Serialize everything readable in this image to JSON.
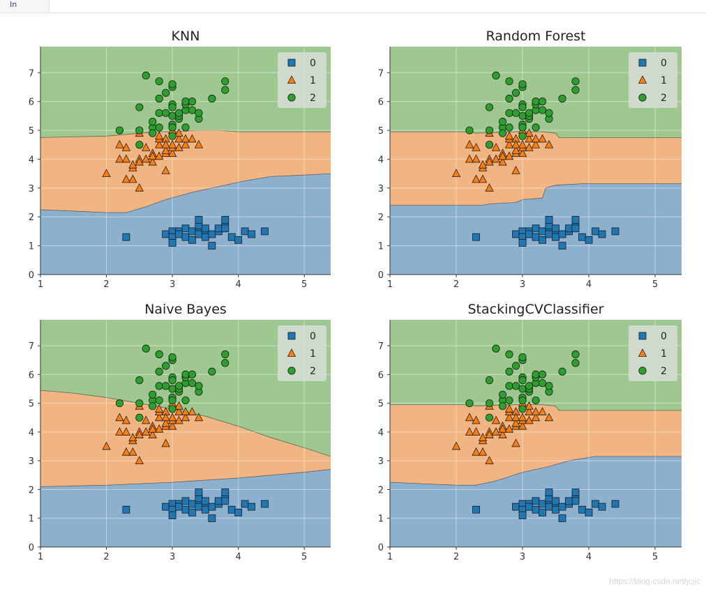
{
  "notebook": {
    "prompt_label": "In"
  },
  "watermark": "https://blog.csdn.net/jcjic",
  "colors": {
    "class0_region": "#8db0ce",
    "class1_region": "#f1b584",
    "class2_region": "#9fc891",
    "class0_marker": "#1f77b4",
    "class1_marker": "#ff7f0e",
    "class2_marker": "#2ca02c",
    "grid": "#ffffff",
    "legend_bg": "#d9dedb"
  },
  "chart_data": [
    {
      "type": "scatter",
      "title": "KNN",
      "xlim": [
        1,
        5.4
      ],
      "ylim": [
        0,
        7.9
      ],
      "xticks": [
        1,
        2,
        3,
        4,
        5
      ],
      "yticks": [
        0,
        1,
        2,
        3,
        4,
        5,
        6,
        7
      ],
      "legend": {
        "placement": "top-right",
        "entries": [
          "0",
          "1",
          "2"
        ]
      },
      "boundary_0_1": [
        [
          1,
          2.25
        ],
        [
          1.5,
          2.2
        ],
        [
          2,
          2.15
        ],
        [
          2.3,
          2.15
        ],
        [
          2.6,
          2.35
        ],
        [
          2.9,
          2.6
        ],
        [
          3.3,
          2.85
        ],
        [
          3.7,
          3.05
        ],
        [
          4.1,
          3.25
        ],
        [
          4.5,
          3.4
        ],
        [
          5.0,
          3.45
        ],
        [
          5.4,
          3.5
        ]
      ],
      "boundary_1_2": [
        [
          1,
          4.75
        ],
        [
          2.0,
          4.8
        ],
        [
          2.5,
          4.9
        ],
        [
          2.8,
          4.95
        ],
        [
          3.0,
          4.95
        ],
        [
          3.4,
          5.0
        ],
        [
          3.7,
          5.0
        ],
        [
          4.0,
          4.95
        ],
        [
          5.4,
          4.95
        ]
      ]
    },
    {
      "type": "scatter",
      "title": "Random Forest",
      "xlim": [
        1,
        5.4
      ],
      "ylim": [
        0,
        7.9
      ],
      "xticks": [
        1,
        2,
        3,
        4,
        5
      ],
      "yticks": [
        0,
        1,
        2,
        3,
        4,
        5,
        6,
        7
      ],
      "legend": {
        "placement": "top-right",
        "entries": [
          "0",
          "1",
          "2"
        ]
      },
      "boundary_0_1": [
        [
          1,
          2.4
        ],
        [
          2.4,
          2.4
        ],
        [
          2.5,
          2.45
        ],
        [
          2.9,
          2.5
        ],
        [
          3.0,
          2.6
        ],
        [
          3.3,
          2.65
        ],
        [
          3.35,
          3.0
        ],
        [
          3.5,
          3.1
        ],
        [
          3.9,
          3.15
        ],
        [
          5.4,
          3.15
        ]
      ],
      "boundary_1_2": [
        [
          1,
          4.95
        ],
        [
          2.2,
          4.95
        ],
        [
          2.3,
          4.9
        ],
        [
          2.9,
          4.95
        ],
        [
          3.3,
          4.95
        ],
        [
          3.5,
          4.9
        ],
        [
          3.55,
          4.75
        ],
        [
          5.4,
          4.75
        ]
      ]
    },
    {
      "type": "scatter",
      "title": "Naive Bayes",
      "xlim": [
        1,
        5.4
      ],
      "ylim": [
        0,
        7.9
      ],
      "xticks": [
        1,
        2,
        3,
        4,
        5
      ],
      "yticks": [
        0,
        1,
        2,
        3,
        4,
        5,
        6,
        7
      ],
      "legend": {
        "placement": "top-right",
        "entries": [
          "0",
          "1",
          "2"
        ]
      },
      "boundary_0_1": [
        [
          1,
          2.1
        ],
        [
          2,
          2.15
        ],
        [
          3,
          2.25
        ],
        [
          4,
          2.4
        ],
        [
          5,
          2.6
        ],
        [
          5.4,
          2.7
        ]
      ],
      "boundary_1_2": [
        [
          1,
          5.45
        ],
        [
          1.5,
          5.35
        ],
        [
          2,
          5.2
        ],
        [
          2.5,
          5.0
        ],
        [
          3,
          4.8
        ],
        [
          3.5,
          4.55
        ],
        [
          4,
          4.2
        ],
        [
          4.5,
          3.8
        ],
        [
          5,
          3.45
        ],
        [
          5.4,
          3.15
        ]
      ]
    },
    {
      "type": "scatter",
      "title": "StackingCVClassifier",
      "xlim": [
        1,
        5.4
      ],
      "ylim": [
        0,
        7.9
      ],
      "xticks": [
        1,
        2,
        3,
        4,
        5
      ],
      "yticks": [
        0,
        1,
        2,
        3,
        4,
        5,
        6,
        7
      ],
      "legend": {
        "placement": "top-right",
        "entries": [
          "0",
          "1",
          "2"
        ]
      },
      "boundary_0_1": [
        [
          1,
          2.25
        ],
        [
          1.5,
          2.2
        ],
        [
          2,
          2.15
        ],
        [
          2.3,
          2.15
        ],
        [
          2.6,
          2.3
        ],
        [
          3.0,
          2.6
        ],
        [
          3.4,
          2.8
        ],
        [
          3.7,
          3.0
        ],
        [
          4.1,
          3.15
        ],
        [
          5.4,
          3.15
        ]
      ],
      "boundary_1_2": [
        [
          1,
          4.95
        ],
        [
          2.2,
          4.95
        ],
        [
          2.3,
          4.9
        ],
        [
          2.9,
          4.95
        ],
        [
          3.3,
          4.95
        ],
        [
          3.5,
          4.9
        ],
        [
          3.55,
          4.75
        ],
        [
          5.4,
          4.75
        ]
      ]
    }
  ],
  "points": {
    "class0": [
      [
        2.3,
        1.3
      ],
      [
        2.9,
        1.4
      ],
      [
        3.0,
        1.5
      ],
      [
        3.0,
        1.3
      ],
      [
        3.0,
        1.1
      ],
      [
        3.1,
        1.5
      ],
      [
        3.1,
        1.4
      ],
      [
        3.2,
        1.6
      ],
      [
        3.2,
        1.3
      ],
      [
        3.3,
        1.5
      ],
      [
        3.3,
        1.2
      ],
      [
        3.4,
        1.6
      ],
      [
        3.4,
        1.4
      ],
      [
        3.4,
        1.7
      ],
      [
        3.4,
        1.9
      ],
      [
        3.5,
        1.4
      ],
      [
        3.5,
        1.3
      ],
      [
        3.5,
        1.6
      ],
      [
        3.6,
        1.4
      ],
      [
        3.6,
        1.0
      ],
      [
        3.7,
        1.5
      ],
      [
        3.7,
        1.6
      ],
      [
        3.8,
        1.7
      ],
      [
        3.8,
        1.9
      ],
      [
        3.8,
        1.6
      ],
      [
        3.9,
        1.3
      ],
      [
        4.0,
        1.2
      ],
      [
        4.1,
        1.5
      ],
      [
        4.2,
        1.4
      ],
      [
        4.4,
        1.5
      ]
    ],
    "class1": [
      [
        2.0,
        3.5
      ],
      [
        2.2,
        4.0
      ],
      [
        2.2,
        4.5
      ],
      [
        2.3,
        4.4
      ],
      [
        2.3,
        3.3
      ],
      [
        2.3,
        4.0
      ],
      [
        2.4,
        3.3
      ],
      [
        2.4,
        3.7
      ],
      [
        2.4,
        3.8
      ],
      [
        2.5,
        4.0
      ],
      [
        2.5,
        3.9
      ],
      [
        2.5,
        3.0
      ],
      [
        2.5,
        4.9
      ],
      [
        2.6,
        4.4
      ],
      [
        2.6,
        4.0
      ],
      [
        2.7,
        3.9
      ],
      [
        2.7,
        4.2
      ],
      [
        2.7,
        4.1
      ],
      [
        2.8,
        4.5
      ],
      [
        2.8,
        4.7
      ],
      [
        2.8,
        4.8
      ],
      [
        2.8,
        4.1
      ],
      [
        2.9,
        4.2
      ],
      [
        2.9,
        4.3
      ],
      [
        2.9,
        4.7
      ],
      [
        2.9,
        4.5
      ],
      [
        2.9,
        3.6
      ],
      [
        3.0,
        4.2
      ],
      [
        3.0,
        4.4
      ],
      [
        3.0,
        4.5
      ],
      [
        3.0,
        5.0
      ],
      [
        3.1,
        4.7
      ],
      [
        3.1,
        4.9
      ],
      [
        3.1,
        4.4
      ],
      [
        3.2,
        4.5
      ],
      [
        3.2,
        4.7
      ],
      [
        3.3,
        4.7
      ],
      [
        3.4,
        4.5
      ]
    ],
    "class2": [
      [
        2.2,
        5.0
      ],
      [
        2.5,
        5.0
      ],
      [
        2.5,
        5.8
      ],
      [
        2.5,
        4.5
      ],
      [
        2.6,
        6.9
      ],
      [
        2.7,
        5.1
      ],
      [
        2.7,
        5.3
      ],
      [
        2.7,
        4.9
      ],
      [
        2.8,
        5.6
      ],
      [
        2.8,
        6.1
      ],
      [
        2.8,
        6.7
      ],
      [
        2.8,
        5.1
      ],
      [
        2.9,
        5.6
      ],
      [
        2.9,
        6.3
      ],
      [
        3.0,
        5.5
      ],
      [
        3.0,
        5.9
      ],
      [
        3.0,
        5.8
      ],
      [
        3.0,
        6.5
      ],
      [
        3.0,
        5.2
      ],
      [
        3.0,
        4.8
      ],
      [
        3.0,
        5.1
      ],
      [
        3.0,
        6.6
      ],
      [
        3.1,
        5.4
      ],
      [
        3.1,
        5.5
      ],
      [
        3.1,
        5.6
      ],
      [
        3.2,
        5.7
      ],
      [
        3.2,
        5.9
      ],
      [
        3.2,
        6.0
      ],
      [
        3.2,
        5.1
      ],
      [
        3.3,
        5.7
      ],
      [
        3.3,
        6.0
      ],
      [
        3.4,
        5.4
      ],
      [
        3.4,
        5.6
      ],
      [
        3.6,
        6.1
      ],
      [
        3.8,
        6.7
      ],
      [
        3.8,
        6.4
      ]
    ]
  }
}
